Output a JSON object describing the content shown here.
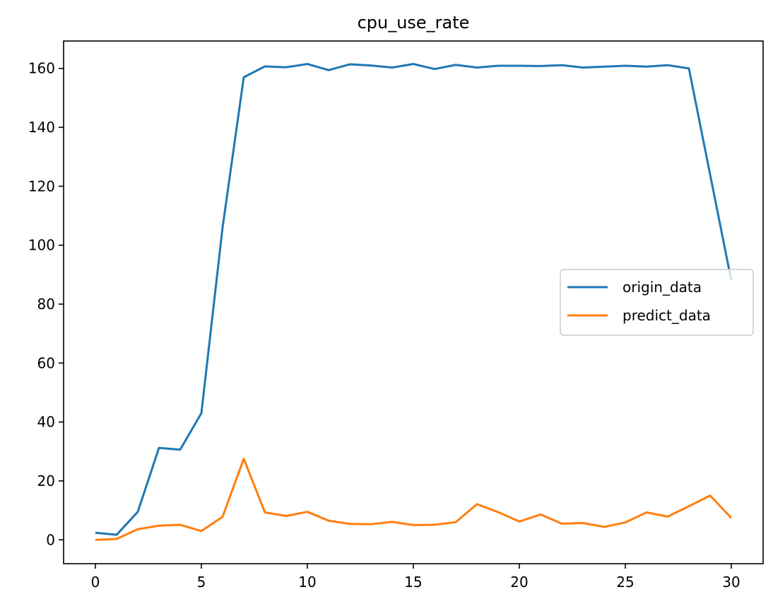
{
  "chart_data": {
    "type": "line",
    "title": "cpu_use_rate",
    "xlabel": "",
    "ylabel": "",
    "xlim": [
      -1.5,
      31.5
    ],
    "ylim": [
      -8.1,
      169.3
    ],
    "x_ticks": [
      0,
      5,
      10,
      15,
      20,
      25,
      30
    ],
    "y_ticks": [
      0,
      20,
      40,
      60,
      80,
      100,
      120,
      140,
      160
    ],
    "grid": false,
    "legend_position": "center-right",
    "x": [
      0,
      1,
      2,
      3,
      4,
      5,
      6,
      7,
      8,
      9,
      10,
      11,
      12,
      13,
      14,
      15,
      16,
      17,
      18,
      19,
      20,
      21,
      22,
      23,
      24,
      25,
      26,
      27,
      28,
      29,
      30
    ],
    "series": [
      {
        "name": "origin_data",
        "color": "#1f77b4",
        "values": [
          2.4,
          1.7,
          9.5,
          31.2,
          30.6,
          43.0,
          106.0,
          157.0,
          160.7,
          160.4,
          161.5,
          159.4,
          161.4,
          161.0,
          160.3,
          161.5,
          159.8,
          161.2,
          160.3,
          160.9,
          160.9,
          160.8,
          161.1,
          160.3,
          160.6,
          160.9,
          160.6,
          161.1,
          160.0,
          124.0,
          88.0
        ]
      },
      {
        "name": "predict_data",
        "color": "#ff7f0e",
        "values": [
          0.0,
          0.3,
          3.6,
          4.8,
          5.1,
          3.0,
          7.8,
          27.5,
          9.3,
          8.1,
          9.5,
          6.5,
          5.4,
          5.3,
          6.1,
          5.0,
          5.1,
          6.0,
          12.1,
          9.4,
          6.2,
          8.6,
          5.5,
          5.7,
          4.4,
          5.9,
          9.3,
          7.9,
          11.4,
          15.0,
          7.4
        ]
      }
    ]
  }
}
